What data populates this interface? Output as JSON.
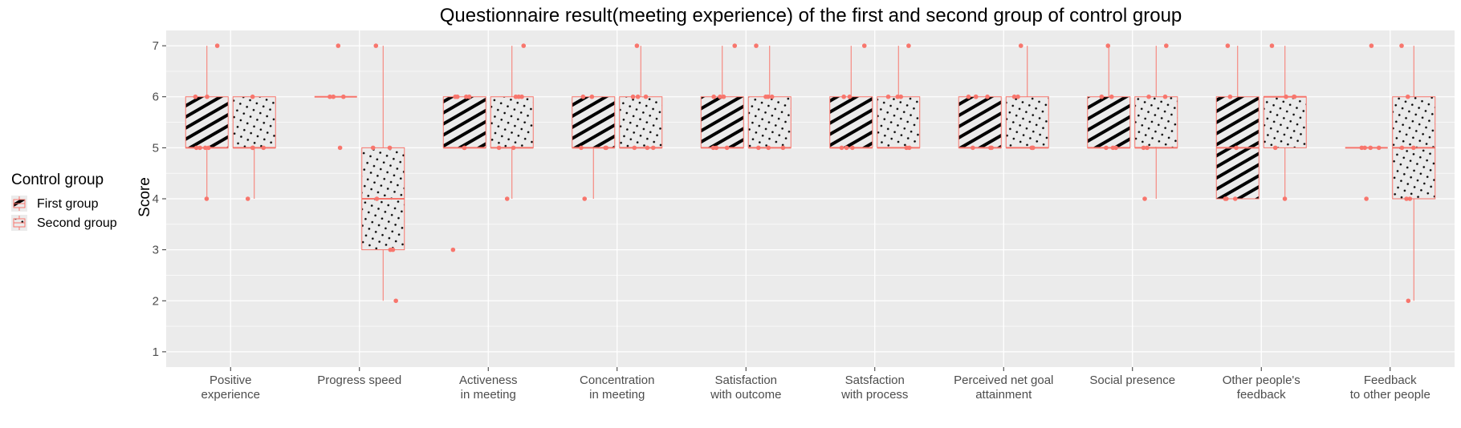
{
  "chart_data": {
    "type": "boxplot",
    "title": "Questionnaire result(meeting experience) of the first and second group of control group",
    "xlabel": "",
    "ylabel": "Score",
    "ylim": [
      0.7,
      7.3
    ],
    "yticks": [
      1,
      2,
      3,
      4,
      5,
      6,
      7
    ],
    "grid": true,
    "legend": {
      "title": "Control group",
      "position": "left",
      "entries": [
        "First group",
        "Second group"
      ]
    },
    "colors": {
      "panel": "#ebebeb",
      "grid": "#ffffff",
      "box_stroke": "#f8766d",
      "point": "#f8766d",
      "pattern_ink": "#000000",
      "text": "#4d4d4d",
      "title": "#000000"
    },
    "categories": [
      [
        "Positive",
        "experience"
      ],
      [
        "Progress speed"
      ],
      [
        "Activeness",
        "in meeting"
      ],
      [
        "Concentration",
        "in meeting"
      ],
      [
        "Satisfaction",
        "with outcome"
      ],
      [
        "Satsfaction",
        "with process"
      ],
      [
        "Perceived net goal",
        "attainment"
      ],
      [
        "Social presence"
      ],
      [
        "Other people's",
        "feedback"
      ],
      [
        "Feedback",
        "to other people"
      ]
    ],
    "series": [
      {
        "name": "First group",
        "pattern": "stripe",
        "boxes": [
          {
            "lower": 4,
            "q1": 5,
            "median": 5,
            "q3": 6,
            "upper": 7,
            "points": [
              4,
              5,
              5,
              5,
              5,
              6,
              6,
              7
            ]
          },
          {
            "lower": 6,
            "q1": 6,
            "median": 6,
            "q3": 6,
            "upper": 6,
            "points": [
              7,
              6,
              6,
              6,
              5
            ]
          },
          {
            "lower": 5,
            "q1": 5,
            "median": 5,
            "q3": 6,
            "upper": 6,
            "points": [
              3,
              5,
              6,
              6,
              6,
              6,
              5
            ]
          },
          {
            "lower": 4,
            "q1": 5,
            "median": 5,
            "q3": 6,
            "upper": 6,
            "points": [
              4,
              5,
              5,
              5,
              6,
              6
            ]
          },
          {
            "lower": 5,
            "q1": 5,
            "median": 5,
            "q3": 6,
            "upper": 7,
            "points": [
              7,
              6,
              6,
              6,
              5,
              5,
              5
            ]
          },
          {
            "lower": 5,
            "q1": 5,
            "median": 5,
            "q3": 6,
            "upper": 7,
            "points": [
              7,
              6,
              6,
              5,
              5,
              5
            ]
          },
          {
            "lower": 5,
            "q1": 5,
            "median": 5,
            "q3": 6,
            "upper": 6,
            "points": [
              6,
              6,
              6,
              6,
              5,
              5,
              5
            ]
          },
          {
            "lower": 5,
            "q1": 5,
            "median": 5,
            "q3": 6,
            "upper": 7,
            "points": [
              7,
              6,
              6,
              5,
              5,
              5
            ]
          },
          {
            "lower": 4,
            "q1": 4,
            "median": 5,
            "q3": 6,
            "upper": 7,
            "points": [
              7,
              6,
              5,
              4,
              4,
              4
            ]
          },
          {
            "lower": 5,
            "q1": 5,
            "median": 5,
            "q3": 5,
            "upper": 5,
            "points": [
              7,
              5,
              5,
              5,
              5,
              4
            ]
          }
        ]
      },
      {
        "name": "Second group",
        "pattern": "dots",
        "boxes": [
          {
            "lower": 4,
            "q1": 5,
            "median": 5,
            "q3": 6,
            "upper": 6,
            "points": [
              6,
              5,
              5,
              5,
              4
            ]
          },
          {
            "lower": 2,
            "q1": 3,
            "median": 4,
            "q3": 5,
            "upper": 7,
            "points": [
              7,
              5,
              5,
              4,
              3,
              3,
              2
            ]
          },
          {
            "lower": 4,
            "q1": 5,
            "median": 5,
            "q3": 6,
            "upper": 7,
            "points": [
              7,
              6,
              6,
              6,
              5,
              5,
              4
            ]
          },
          {
            "lower": 5,
            "q1": 5,
            "median": 5,
            "q3": 6,
            "upper": 7,
            "points": [
              7,
              6,
              6,
              6,
              5,
              5,
              5
            ]
          },
          {
            "lower": 5,
            "q1": 5,
            "median": 5,
            "q3": 6,
            "upper": 7,
            "points": [
              7,
              6,
              6,
              6,
              5,
              5,
              5
            ]
          },
          {
            "lower": 5,
            "q1": 5,
            "median": 5,
            "q3": 6,
            "upper": 7,
            "points": [
              7,
              6,
              6,
              6,
              5,
              5
            ]
          },
          {
            "lower": 5,
            "q1": 5,
            "median": 5,
            "q3": 6,
            "upper": 7,
            "points": [
              7,
              6,
              6,
              5,
              5,
              5
            ]
          },
          {
            "lower": 4,
            "q1": 5,
            "median": 5,
            "q3": 6,
            "upper": 7,
            "points": [
              7,
              6,
              6,
              5,
              5,
              4
            ]
          },
          {
            "lower": 4,
            "q1": 5,
            "median": 6,
            "q3": 6,
            "upper": 7,
            "points": [
              7,
              6,
              6,
              6,
              5,
              4
            ]
          },
          {
            "lower": 2,
            "q1": 4,
            "median": 5,
            "q3": 6,
            "upper": 7,
            "points": [
              7,
              6,
              5,
              5,
              4,
              4,
              2
            ]
          }
        ]
      }
    ]
  }
}
